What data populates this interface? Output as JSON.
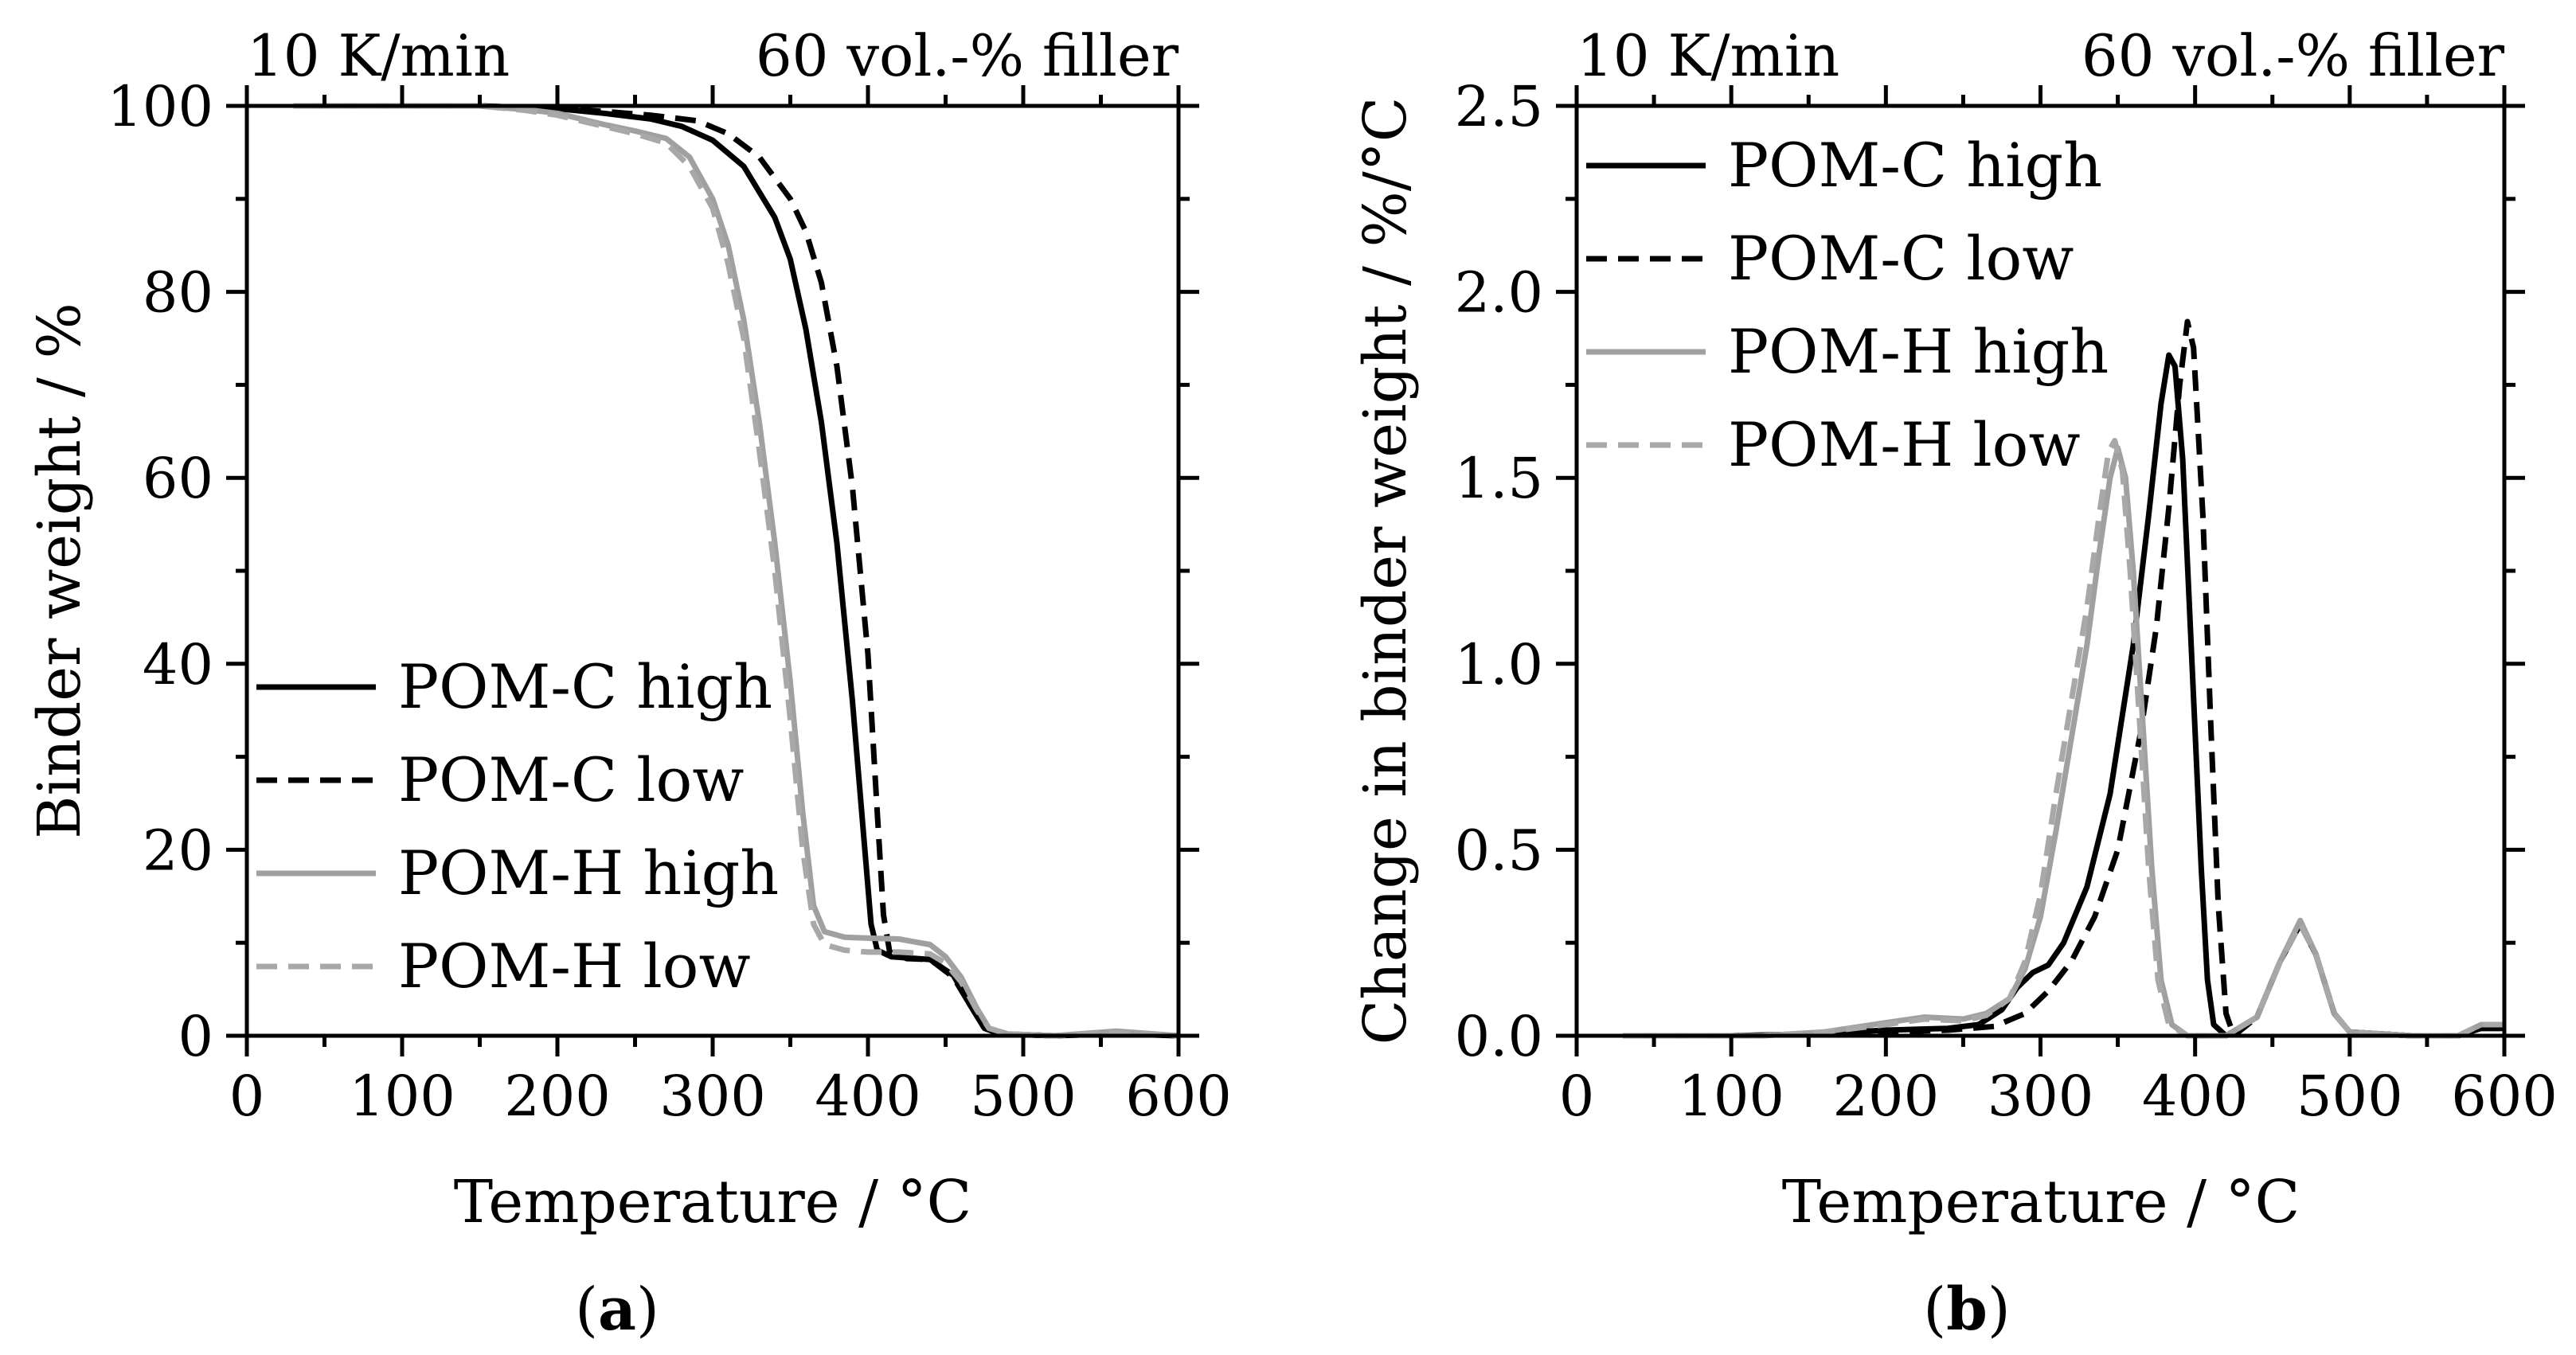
{
  "figure": {
    "panels": [
      {
        "caption_open": "(",
        "caption_letter": "a",
        "caption_close": ")"
      },
      {
        "caption_open": "(",
        "caption_letter": "b",
        "caption_close": ")"
      }
    ]
  },
  "chart_data": [
    {
      "type": "line",
      "panel": "a",
      "header_left": "10 K/min",
      "header_right": "60 vol.-% filler",
      "xlabel": "Temperature / °C",
      "ylabel": "Binder weight / %",
      "xlim": [
        0,
        600
      ],
      "ylim": [
        0,
        100
      ],
      "xticks": [
        0,
        100,
        200,
        300,
        400,
        500,
        600
      ],
      "yticks": [
        0,
        20,
        40,
        60,
        80,
        100
      ],
      "legend_position": "bottom-left",
      "series": [
        {
          "name": "POM-C high",
          "color": "#000000",
          "dash": "solid",
          "points": [
            [
              30,
              100
            ],
            [
              150,
              100
            ],
            [
              200,
              99.7
            ],
            [
              230,
              99.2
            ],
            [
              260,
              98.6
            ],
            [
              280,
              97.8
            ],
            [
              300,
              96.3
            ],
            [
              320,
              93.5
            ],
            [
              340,
              88
            ],
            [
              350,
              83.5
            ],
            [
              360,
              76
            ],
            [
              370,
              66
            ],
            [
              380,
              53
            ],
            [
              390,
              36
            ],
            [
              398,
              20
            ],
            [
              402,
              12
            ],
            [
              406,
              9.2
            ],
            [
              415,
              8.5
            ],
            [
              440,
              8.2
            ],
            [
              455,
              6.5
            ],
            [
              465,
              3.5
            ],
            [
              475,
              0.8
            ],
            [
              485,
              0.2
            ],
            [
              520,
              0
            ],
            [
              560,
              0.3
            ],
            [
              600,
              0
            ]
          ]
        },
        {
          "name": "POM-C low",
          "color": "#000000",
          "dash": "dashed",
          "points": [
            [
              30,
              100
            ],
            [
              150,
              100
            ],
            [
              200,
              99.7
            ],
            [
              230,
              99.4
            ],
            [
              260,
              99
            ],
            [
              290,
              98.4
            ],
            [
              310,
              97
            ],
            [
              330,
              94.5
            ],
            [
              350,
              90
            ],
            [
              360,
              86.5
            ],
            [
              370,
              81
            ],
            [
              380,
              72
            ],
            [
              390,
              59
            ],
            [
              400,
              41
            ],
            [
              406,
              24
            ],
            [
              410,
              13
            ],
            [
              414,
              9
            ],
            [
              425,
              8.3
            ],
            [
              440,
              8.2
            ],
            [
              455,
              6.3
            ],
            [
              465,
              3.5
            ],
            [
              475,
              0.8
            ],
            [
              485,
              0.2
            ],
            [
              520,
              0
            ],
            [
              560,
              0.2
            ],
            [
              600,
              0
            ]
          ]
        },
        {
          "name": "POM-H high",
          "color": "#a0a0a0",
          "dash": "solid",
          "points": [
            [
              30,
              100
            ],
            [
              150,
              100
            ],
            [
              180,
              99.6
            ],
            [
              200,
              99.2
            ],
            [
              230,
              98
            ],
            [
              250,
              97.3
            ],
            [
              270,
              96.5
            ],
            [
              285,
              94.5
            ],
            [
              300,
              90
            ],
            [
              310,
              85
            ],
            [
              320,
              77
            ],
            [
              330,
              66
            ],
            [
              340,
              53
            ],
            [
              350,
              38
            ],
            [
              358,
              24
            ],
            [
              365,
              14
            ],
            [
              372,
              11.2
            ],
            [
              385,
              10.6
            ],
            [
              400,
              10.5
            ],
            [
              420,
              10.4
            ],
            [
              440,
              9.8
            ],
            [
              450,
              8.5
            ],
            [
              460,
              6.3
            ],
            [
              470,
              3
            ],
            [
              478,
              0.8
            ],
            [
              490,
              0.2
            ],
            [
              520,
              0
            ],
            [
              560,
              0.5
            ],
            [
              600,
              0
            ]
          ]
        },
        {
          "name": "POM-H low",
          "color": "#a8a8a8",
          "dash": "dashed",
          "points": [
            [
              30,
              100
            ],
            [
              150,
              100
            ],
            [
              180,
              99.5
            ],
            [
              200,
              99
            ],
            [
              230,
              97.8
            ],
            [
              250,
              97
            ],
            [
              270,
              96
            ],
            [
              285,
              93.5
            ],
            [
              300,
              89
            ],
            [
              310,
              83
            ],
            [
              320,
              75
            ],
            [
              330,
              63
            ],
            [
              340,
              50
            ],
            [
              350,
              34
            ],
            [
              358,
              20
            ],
            [
              365,
              12
            ],
            [
              372,
              9.8
            ],
            [
              385,
              9.2
            ],
            [
              400,
              9
            ],
            [
              420,
              9
            ],
            [
              440,
              8.8
            ],
            [
              450,
              7.8
            ],
            [
              460,
              5.8
            ],
            [
              470,
              2.8
            ],
            [
              478,
              0.8
            ],
            [
              490,
              0.2
            ],
            [
              520,
              0
            ],
            [
              560,
              0.3
            ],
            [
              600,
              0
            ]
          ]
        }
      ]
    },
    {
      "type": "line",
      "panel": "b",
      "header_left": "10 K/min",
      "header_right": "60 vol.-% filler",
      "xlabel": "Temperature / °C",
      "ylabel": "Change in binder weight / %/°C",
      "xlim": [
        0,
        600
      ],
      "ylim": [
        0,
        2.5
      ],
      "xticks": [
        0,
        100,
        200,
        300,
        400,
        500,
        600
      ],
      "yticks": [
        0.0,
        0.5,
        1.0,
        1.5,
        2.0,
        2.5
      ],
      "ytick_labels": [
        "0.0",
        "0.5",
        "1.0",
        "1.5",
        "2.0",
        "2.5"
      ],
      "legend_position": "top-left",
      "series": [
        {
          "name": "POM-C high",
          "color": "#000000",
          "dash": "solid",
          "points": [
            [
              30,
              0
            ],
            [
              100,
              0
            ],
            [
              150,
              0.005
            ],
            [
              200,
              0.015
            ],
            [
              240,
              0.02
            ],
            [
              260,
              0.03
            ],
            [
              275,
              0.07
            ],
            [
              285,
              0.13
            ],
            [
              295,
              0.17
            ],
            [
              305,
              0.19
            ],
            [
              315,
              0.25
            ],
            [
              330,
              0.4
            ],
            [
              345,
              0.65
            ],
            [
              360,
              1.05
            ],
            [
              370,
              1.4
            ],
            [
              378,
              1.7
            ],
            [
              383,
              1.83
            ],
            [
              387,
              1.8
            ],
            [
              392,
              1.55
            ],
            [
              398,
              1.0
            ],
            [
              404,
              0.45
            ],
            [
              408,
              0.15
            ],
            [
              412,
              0.03
            ],
            [
              420,
              0
            ],
            [
              440,
              0.05
            ],
            [
              455,
              0.2
            ],
            [
              468,
              0.3
            ],
            [
              478,
              0.22
            ],
            [
              490,
              0.06
            ],
            [
              500,
              0.01
            ],
            [
              540,
              0
            ],
            [
              570,
              0
            ],
            [
              585,
              0.02
            ],
            [
              600,
              0.02
            ]
          ]
        },
        {
          "name": "POM-C low",
          "color": "#000000",
          "dash": "dashed",
          "points": [
            [
              30,
              0
            ],
            [
              100,
              0
            ],
            [
              150,
              0.004
            ],
            [
              200,
              0.01
            ],
            [
              240,
              0.015
            ],
            [
              270,
              0.025
            ],
            [
              290,
              0.06
            ],
            [
              305,
              0.12
            ],
            [
              320,
              0.2
            ],
            [
              335,
              0.32
            ],
            [
              350,
              0.5
            ],
            [
              365,
              0.82
            ],
            [
              375,
              1.1
            ],
            [
              383,
              1.42
            ],
            [
              390,
              1.75
            ],
            [
              395,
              1.92
            ],
            [
              399,
              1.85
            ],
            [
              405,
              1.4
            ],
            [
              410,
              0.85
            ],
            [
              415,
              0.35
            ],
            [
              420,
              0.06
            ],
            [
              425,
              0
            ],
            [
              440,
              0.05
            ],
            [
              455,
              0.2
            ],
            [
              468,
              0.3
            ],
            [
              478,
              0.22
            ],
            [
              490,
              0.06
            ],
            [
              500,
              0.01
            ],
            [
              540,
              0
            ],
            [
              570,
              0
            ],
            [
              585,
              0.02
            ],
            [
              600,
              0.02
            ]
          ]
        },
        {
          "name": "POM-H high",
          "color": "#a0a0a0",
          "dash": "solid",
          "points": [
            [
              30,
              0
            ],
            [
              120,
              0
            ],
            [
              160,
              0.01
            ],
            [
              200,
              0.035
            ],
            [
              225,
              0.05
            ],
            [
              250,
              0.045
            ],
            [
              265,
              0.06
            ],
            [
              280,
              0.1
            ],
            [
              290,
              0.18
            ],
            [
              300,
              0.32
            ],
            [
              310,
              0.55
            ],
            [
              320,
              0.8
            ],
            [
              330,
              1.05
            ],
            [
              338,
              1.3
            ],
            [
              345,
              1.5
            ],
            [
              350,
              1.58
            ],
            [
              355,
              1.5
            ],
            [
              360,
              1.25
            ],
            [
              366,
              0.85
            ],
            [
              372,
              0.45
            ],
            [
              378,
              0.15
            ],
            [
              385,
              0.03
            ],
            [
              395,
              0
            ],
            [
              420,
              0
            ],
            [
              440,
              0.05
            ],
            [
              455,
              0.2
            ],
            [
              468,
              0.31
            ],
            [
              478,
              0.22
            ],
            [
              490,
              0.06
            ],
            [
              500,
              0.01
            ],
            [
              540,
              0
            ],
            [
              570,
              0
            ],
            [
              585,
              0.03
            ],
            [
              600,
              0.03
            ]
          ]
        },
        {
          "name": "POM-H low",
          "color": "#a8a8a8",
          "dash": "dashed",
          "points": [
            [
              30,
              0
            ],
            [
              120,
              0
            ],
            [
              160,
              0.01
            ],
            [
              200,
              0.03
            ],
            [
              225,
              0.045
            ],
            [
              250,
              0.04
            ],
            [
              265,
              0.055
            ],
            [
              280,
              0.1
            ],
            [
              290,
              0.2
            ],
            [
              300,
              0.38
            ],
            [
              310,
              0.65
            ],
            [
              320,
              0.9
            ],
            [
              330,
              1.15
            ],
            [
              338,
              1.4
            ],
            [
              344,
              1.57
            ],
            [
              348,
              1.6
            ],
            [
              353,
              1.52
            ],
            [
              358,
              1.25
            ],
            [
              364,
              0.85
            ],
            [
              370,
              0.45
            ],
            [
              376,
              0.15
            ],
            [
              383,
              0.03
            ],
            [
              395,
              0
            ],
            [
              420,
              0
            ],
            [
              440,
              0.05
            ],
            [
              455,
              0.2
            ],
            [
              468,
              0.3
            ],
            [
              478,
              0.22
            ],
            [
              490,
              0.06
            ],
            [
              500,
              0.01
            ],
            [
              540,
              0
            ],
            [
              570,
              0
            ],
            [
              585,
              0.03
            ],
            [
              600,
              0.03
            ]
          ]
        }
      ]
    }
  ]
}
